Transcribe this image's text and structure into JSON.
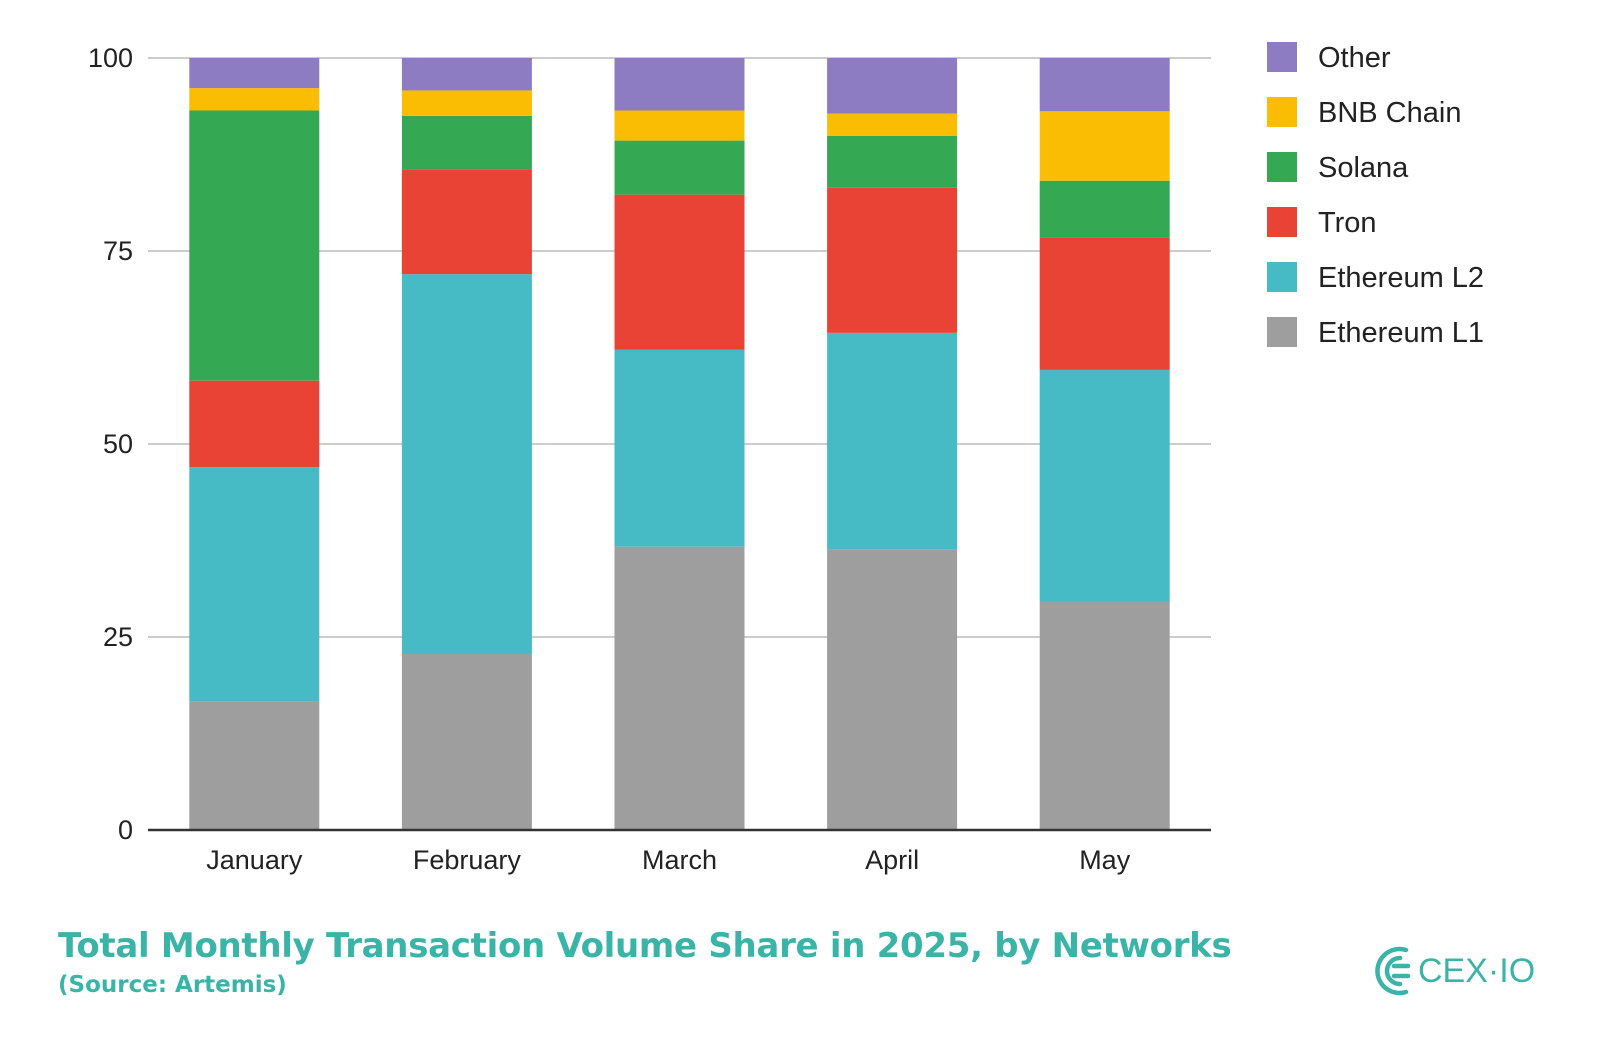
{
  "chart_data": {
    "type": "bar",
    "stacked": true,
    "categories": [
      "January",
      "February",
      "March",
      "April",
      "May"
    ],
    "ylim": [
      0,
      100
    ],
    "yticks": [
      0,
      25,
      50,
      75,
      100
    ],
    "grid": true,
    "legend_position": "right",
    "series": [
      {
        "name": "Ethereum L1",
        "color": "#9e9e9e",
        "values": [
          16.6,
          22.8,
          36.7,
          36.3,
          29.6
        ]
      },
      {
        "name": "Ethereum L2",
        "color": "#46bbc6",
        "values": [
          30.4,
          49.2,
          25.5,
          28.1,
          30.0
        ]
      },
      {
        "name": "Tron",
        "color": "#e94335",
        "values": [
          11.2,
          13.5,
          20.1,
          18.8,
          17.1
        ]
      },
      {
        "name": "Solana",
        "color": "#34a853",
        "values": [
          35.0,
          7.0,
          7.0,
          6.7,
          7.4
        ]
      },
      {
        "name": "BNB Chain",
        "color": "#fbbc04",
        "values": [
          2.9,
          3.3,
          3.9,
          2.9,
          9.0
        ]
      },
      {
        "name": "Other",
        "color": "#8e7cc3",
        "values": [
          3.9,
          4.2,
          6.8,
          7.2,
          6.9
        ]
      }
    ]
  },
  "footer": {
    "title": "Total Monthly Transaction Volume Share in 2025, by Networks",
    "source": "(Source: Artemis)"
  },
  "logo": {
    "text_main": "CEX",
    "text_dot": "·",
    "text_end": "IO",
    "color": "#3bb4a8"
  }
}
